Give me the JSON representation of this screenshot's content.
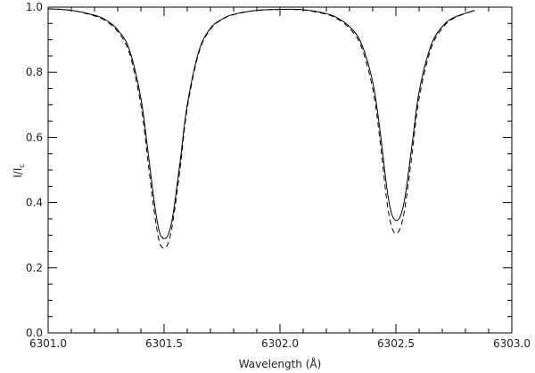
{
  "chart_data": {
    "type": "line",
    "xlabel": "Wavelength (Å)",
    "ylabel_main": "I",
    "ylabel_slash": "/",
    "ylabel_denominator": "I",
    "ylabel_subscript": "c",
    "xlim": [
      6301.0,
      6303.0
    ],
    "ylim": [
      0.0,
      1.0
    ],
    "x_ticks": [
      "6301.0",
      "6301.5",
      "6302.0",
      "6302.5",
      "6303.0"
    ],
    "y_ticks": [
      "0.0",
      "0.2",
      "0.4",
      "0.6",
      "0.8",
      "1.0"
    ],
    "grid": false,
    "legend": "none",
    "line_color": "#000000",
    "series": [
      {
        "style": "solid",
        "x": [
          6301.0,
          6301.1,
          6301.2,
          6301.25,
          6301.3,
          6301.35,
          6301.4,
          6301.43,
          6301.46,
          6301.48,
          6301.5,
          6301.52,
          6301.54,
          6301.57,
          6301.6,
          6301.65,
          6301.7,
          6301.75,
          6301.8,
          6301.9,
          6302.0,
          6302.1,
          6302.2,
          6302.25,
          6302.3,
          6302.35,
          6302.4,
          6302.43,
          6302.46,
          6302.48,
          6302.5,
          6302.52,
          6302.54,
          6302.57,
          6302.6,
          6302.65,
          6302.7,
          6302.75,
          6302.84
        ],
        "y": [
          0.995,
          0.99,
          0.975,
          0.96,
          0.93,
          0.87,
          0.72,
          0.56,
          0.39,
          0.31,
          0.29,
          0.305,
          0.37,
          0.53,
          0.7,
          0.865,
          0.935,
          0.963,
          0.978,
          0.99,
          0.993,
          0.992,
          0.98,
          0.966,
          0.94,
          0.89,
          0.77,
          0.63,
          0.45,
          0.37,
          0.345,
          0.36,
          0.42,
          0.58,
          0.74,
          0.88,
          0.94,
          0.968,
          0.99
        ]
      },
      {
        "style": "dashed",
        "x": [
          6301.0,
          6301.1,
          6301.2,
          6301.25,
          6301.3,
          6301.35,
          6301.4,
          6301.43,
          6301.46,
          6301.48,
          6301.5,
          6301.52,
          6301.54,
          6301.57,
          6301.6,
          6301.65,
          6301.7,
          6301.75,
          6301.8,
          6301.9,
          6302.0,
          6302.1,
          6302.2,
          6302.25,
          6302.3,
          6302.35,
          6302.4,
          6302.43,
          6302.46,
          6302.48,
          6302.5,
          6302.52,
          6302.54,
          6302.57,
          6302.6,
          6302.65,
          6302.7,
          6302.75,
          6302.84
        ],
        "y": [
          0.995,
          0.99,
          0.973,
          0.957,
          0.925,
          0.86,
          0.7,
          0.53,
          0.36,
          0.28,
          0.26,
          0.28,
          0.35,
          0.51,
          0.69,
          0.86,
          0.932,
          0.962,
          0.977,
          0.99,
          0.993,
          0.991,
          0.978,
          0.963,
          0.935,
          0.88,
          0.75,
          0.6,
          0.41,
          0.33,
          0.305,
          0.325,
          0.39,
          0.55,
          0.72,
          0.87,
          0.935,
          0.966,
          0.99
        ]
      }
    ]
  }
}
